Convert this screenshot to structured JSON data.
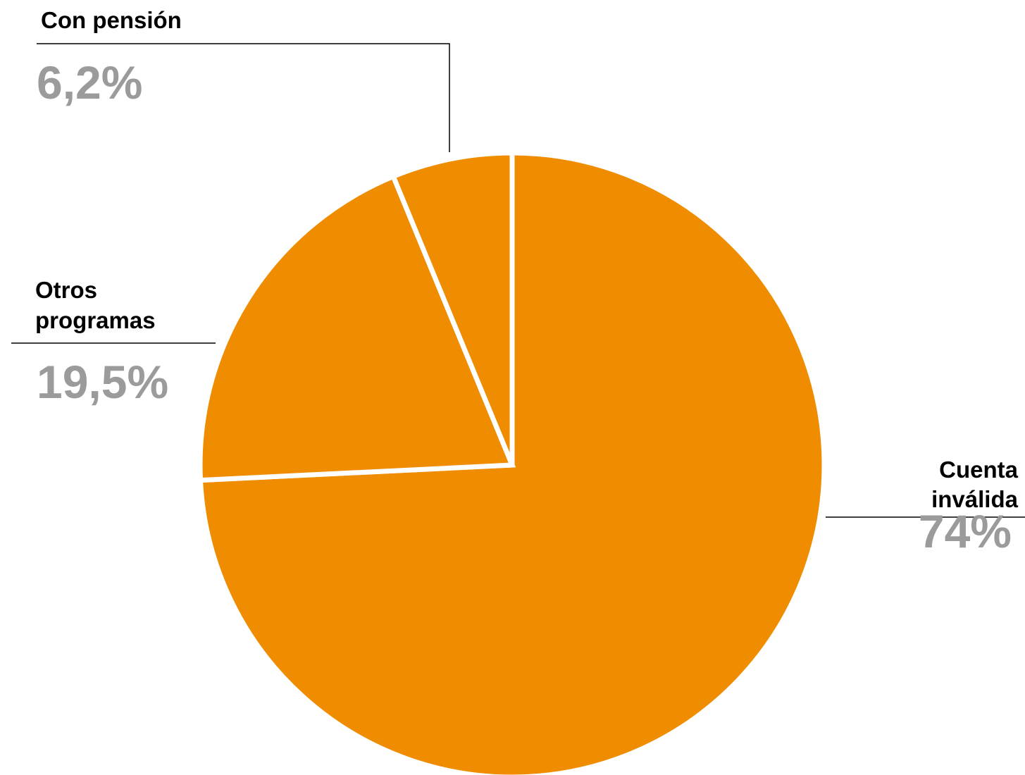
{
  "colors": {
    "slice": "#f08c00",
    "separator": "#ffffff",
    "value_text": "#9b9b9b",
    "label_text": "#000000"
  },
  "chart_data": {
    "type": "pie",
    "title": "",
    "slices": [
      {
        "label_lines": [
          "Cuenta",
          "inválida"
        ],
        "value": 74,
        "value_label": "74%"
      },
      {
        "label_lines": [
          "Otros",
          "programas"
        ],
        "value": 19.5,
        "value_label": "19,5%"
      },
      {
        "label_lines": [
          "Con pensión"
        ],
        "value": 6.2,
        "value_label": "6,2%"
      }
    ]
  }
}
